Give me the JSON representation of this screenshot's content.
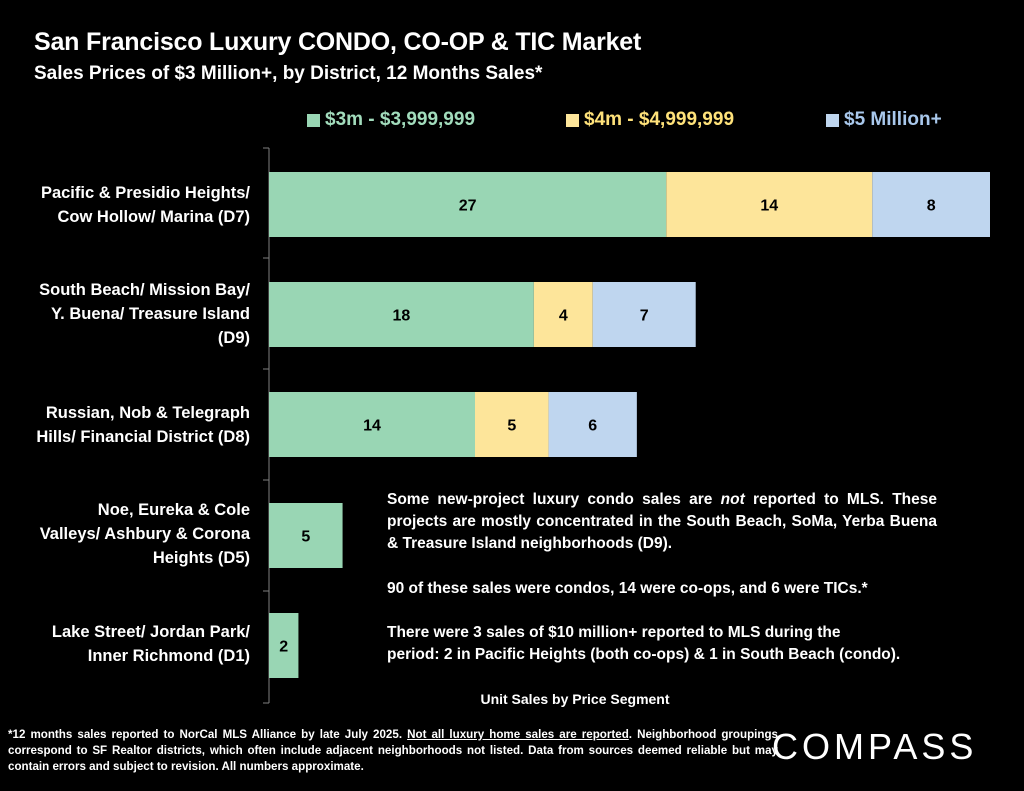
{
  "title": "San Francisco Luxury CONDO, CO-OP & TIC Market",
  "subtitle": "Sales Prices of $3 Million+, by District, 12 Months Sales*",
  "colors": {
    "seg1": "#99d6b4",
    "seg2": "#fde59a",
    "seg3": "#bfd6ef",
    "seg1_text": "#a2dcbc",
    "seg2_text": "#ffe27a",
    "seg3_text": "#a9c8ec",
    "axis": "#808080"
  },
  "chart_data": {
    "type": "bar",
    "orientation": "horizontal",
    "stacked": true,
    "categories": [
      "Pacific & Presidio Heights/ Cow Hollow/ Marina (D7)",
      "South Beach/ Mission Bay/ Y. Buena/ Treasure Island (D9)",
      "Russian, Nob & Telegraph Hills/ Financial District (D8)",
      "Noe, Eureka & Cole Valleys/ Ashbury & Corona Heights (D5)",
      "Lake Street/ Jordan Park/ Inner Richmond (D1)"
    ],
    "category_lines": [
      [
        "Pacific & Presidio Heights/",
        "Cow Hollow/ Marina (D7)"
      ],
      [
        "South Beach/ Mission Bay/",
        "Y. Buena/ Treasure Island",
        "(D9)"
      ],
      [
        "Russian, Nob & Telegraph",
        "Hills/ Financial District (D8)"
      ],
      [
        "Noe, Eureka & Cole",
        "Valleys/ Ashbury & Corona",
        "Heights (D5)"
      ],
      [
        "Lake Street/ Jordan Park/",
        "Inner Richmond (D1)"
      ]
    ],
    "series": [
      {
        "name": "$3m - $3,999,999",
        "values": [
          27,
          18,
          14,
          5,
          2
        ]
      },
      {
        "name": "$4m - $4,999,999",
        "values": [
          14,
          4,
          5,
          0,
          0
        ]
      },
      {
        "name": "$5 Million+",
        "values": [
          8,
          7,
          6,
          0,
          0
        ]
      }
    ],
    "xlabel": "Unit Sales by Price Segment",
    "xlim": [
      0,
      49
    ],
    "grid": false,
    "legend_position": "top"
  },
  "notes": {
    "p1_a": "Some new-project luxury condo sales are ",
    "p1_em": "not",
    "p1_b": " reported to MLS. These projects are mostly concentrated in the South Beach, SoMa, Yerba Buena & Treasure Island neighborhoods (D9).",
    "p2": "90 of these sales were condos, 14 were co-ops, and 6 were TICs.*",
    "p3_line1": "There were 3 sales of $10 million+ reported to MLS during the",
    "p3_line2": "period:  2 in Pacific Heights (both co-ops) & 1 in South Beach (condo)."
  },
  "footnote": {
    "a": "*12 months sales reported to NorCal MLS Alliance by late July 2025. ",
    "u": "Not all luxury home sales are reported",
    "b": ". Neighborhood groupings correspond to SF Realtor districts, which often include adjacent neighborhoods not listed. Data from sources deemed reliable but may contain errors and subject to revision. All numbers approximate."
  },
  "logo": "COMPASS"
}
